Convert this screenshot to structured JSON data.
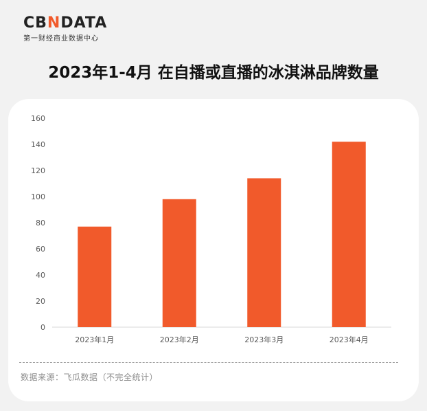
{
  "brand": {
    "logo_text_left": "CB",
    "logo_text_accent": "N",
    "logo_text_right": "DATA",
    "subtitle": "第一财经商业数据中心"
  },
  "colors": {
    "bar": "#f15a2b",
    "logo_accent": "#f15a2b",
    "background": "#f2f2f2",
    "card": "#ffffff"
  },
  "source": "数据来源：飞瓜数据（不完全统计）",
  "chart_data": {
    "type": "bar",
    "title": "2023年1-4月 在自播或直播的冰淇淋品牌数量",
    "categories": [
      "2023年1月",
      "2023年2月",
      "2023年3月",
      "2023年4月"
    ],
    "values": [
      77,
      98,
      114,
      142
    ],
    "ylim": [
      0,
      160
    ],
    "yticks": [
      "0",
      "20",
      "40",
      "60",
      "80",
      "100",
      "120",
      "140",
      "160"
    ],
    "grid": false,
    "legend": "none",
    "xlabel": "",
    "ylabel": ""
  }
}
